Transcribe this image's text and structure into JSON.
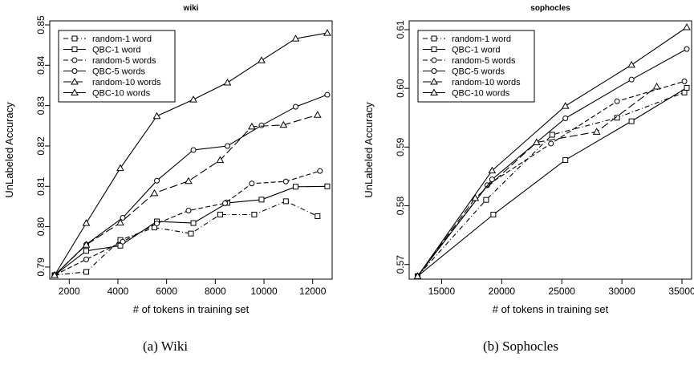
{
  "captions": [
    "(a)  Wiki",
    "(b)  Sophocles"
  ],
  "chart_data": [
    {
      "type": "line",
      "title": "wiki",
      "xlabel": "# of tokens in training set",
      "ylabel": "UnLabeled Accuracy",
      "xlim": [
        1200,
        12800
      ],
      "ylim": [
        0.787,
        0.851
      ],
      "xticks": [
        2000,
        4000,
        6000,
        8000,
        10000,
        12000
      ],
      "yticks": [
        0.79,
        0.8,
        0.81,
        0.82,
        0.83,
        0.84,
        0.85
      ],
      "ytick_labels": [
        "0.79",
        "0.80",
        "0.81",
        "0.82",
        "0.83",
        "0.84",
        "0.85"
      ],
      "legend_position": "top-left",
      "series": [
        {
          "name": "random-1 word",
          "marker": "square",
          "dash": "6,3,1,3",
          "x": [
            1400,
            2700,
            4100,
            5500,
            7000,
            8200,
            9600,
            10900,
            12200
          ],
          "y": [
            0.788,
            0.7888,
            0.7967,
            0.7998,
            0.7983,
            0.803,
            0.803,
            0.8063,
            0.8026
          ]
        },
        {
          "name": "QBC-1 word",
          "marker": "square",
          "dash": "",
          "x": [
            1400,
            2700,
            4100,
            5600,
            7100,
            8500,
            9900,
            11300,
            12600
          ],
          "y": [
            0.788,
            0.794,
            0.7953,
            0.8013,
            0.8009,
            0.8059,
            0.8067,
            0.8099,
            0.81
          ]
        },
        {
          "name": "random-5 words",
          "marker": "circle",
          "dash": "6,3",
          "x": [
            1400,
            2700,
            4200,
            5600,
            6900,
            8400,
            9500,
            10900,
            12300
          ],
          "y": [
            0.788,
            0.7919,
            0.7963,
            0.8008,
            0.804,
            0.8058,
            0.8107,
            0.8112,
            0.8138
          ]
        },
        {
          "name": "QBC-5 words",
          "marker": "circle",
          "dash": "",
          "x": [
            1400,
            2700,
            4200,
            5600,
            7100,
            8500,
            9900,
            11300,
            12600
          ],
          "y": [
            0.788,
            0.7956,
            0.8022,
            0.8114,
            0.819,
            0.82,
            0.8251,
            0.8297,
            0.8327
          ]
        },
        {
          "name": "random-10 words",
          "marker": "triangle",
          "dash": "10,4",
          "x": [
            1400,
            2700,
            4100,
            5500,
            6900,
            8200,
            9500,
            10800,
            12200
          ],
          "y": [
            0.788,
            0.7955,
            0.801,
            0.8083,
            0.8113,
            0.8165,
            0.8248,
            0.8252,
            0.8277
          ]
        },
        {
          "name": "QBC-10 words",
          "marker": "triangle",
          "dash": "",
          "x": [
            1400,
            2700,
            4100,
            5600,
            7100,
            8500,
            9900,
            11300,
            12600
          ],
          "y": [
            0.788,
            0.8009,
            0.8145,
            0.8274,
            0.8315,
            0.8357,
            0.8412,
            0.8466,
            0.848
          ]
        }
      ]
    },
    {
      "type": "line",
      "title": "sophocles",
      "xlabel": "# of tokens in training set",
      "ylabel": "UnLabeled Accuracy",
      "xlim": [
        12300,
        35800
      ],
      "ylim": [
        0.5675,
        0.6115
      ],
      "xticks": [
        15000,
        20000,
        25000,
        30000,
        35000
      ],
      "yticks": [
        0.57,
        0.58,
        0.59,
        0.6,
        0.61
      ],
      "ytick_labels": [
        "0.57",
        "0.58",
        "0.59",
        "0.60",
        "0.61"
      ],
      "legend_position": "top-left",
      "series": [
        {
          "name": "random-1 word",
          "marker": "square",
          "dash": "6,3,1,3",
          "x": [
            13000,
            18700,
            24200,
            29600,
            35200
          ],
          "y": [
            0.568,
            0.581,
            0.5921,
            0.595,
            0.5993
          ]
        },
        {
          "name": "QBC-1 word",
          "marker": "square",
          "dash": "",
          "x": [
            13000,
            19300,
            25300,
            30800,
            35400
          ],
          "y": [
            0.568,
            0.5785,
            0.5878,
            0.5944,
            0.6001
          ]
        },
        {
          "name": "random-5 words",
          "marker": "circle",
          "dash": "6,3",
          "x": [
            13000,
            18800,
            24100,
            29600,
            35200
          ],
          "y": [
            0.568,
            0.5835,
            0.5906,
            0.5978,
            0.6012
          ]
        },
        {
          "name": "QBC-5 words",
          "marker": "circle",
          "dash": "",
          "x": [
            13000,
            19200,
            25300,
            30800,
            35400
          ],
          "y": [
            0.568,
            0.5845,
            0.5949,
            0.6015,
            0.6067
          ]
        },
        {
          "name": "random-10 words",
          "marker": "triangle",
          "dash": "10,4",
          "x": [
            13000,
            17800,
            22900,
            27900,
            32900
          ],
          "y": [
            0.568,
            0.5813,
            0.5908,
            0.5926,
            0.6003
          ]
        },
        {
          "name": "QBC-10 words",
          "marker": "triangle",
          "dash": "",
          "x": [
            13000,
            19200,
            25300,
            30800,
            35400
          ],
          "y": [
            0.568,
            0.586,
            0.597,
            0.604,
            0.6104
          ]
        }
      ]
    }
  ]
}
